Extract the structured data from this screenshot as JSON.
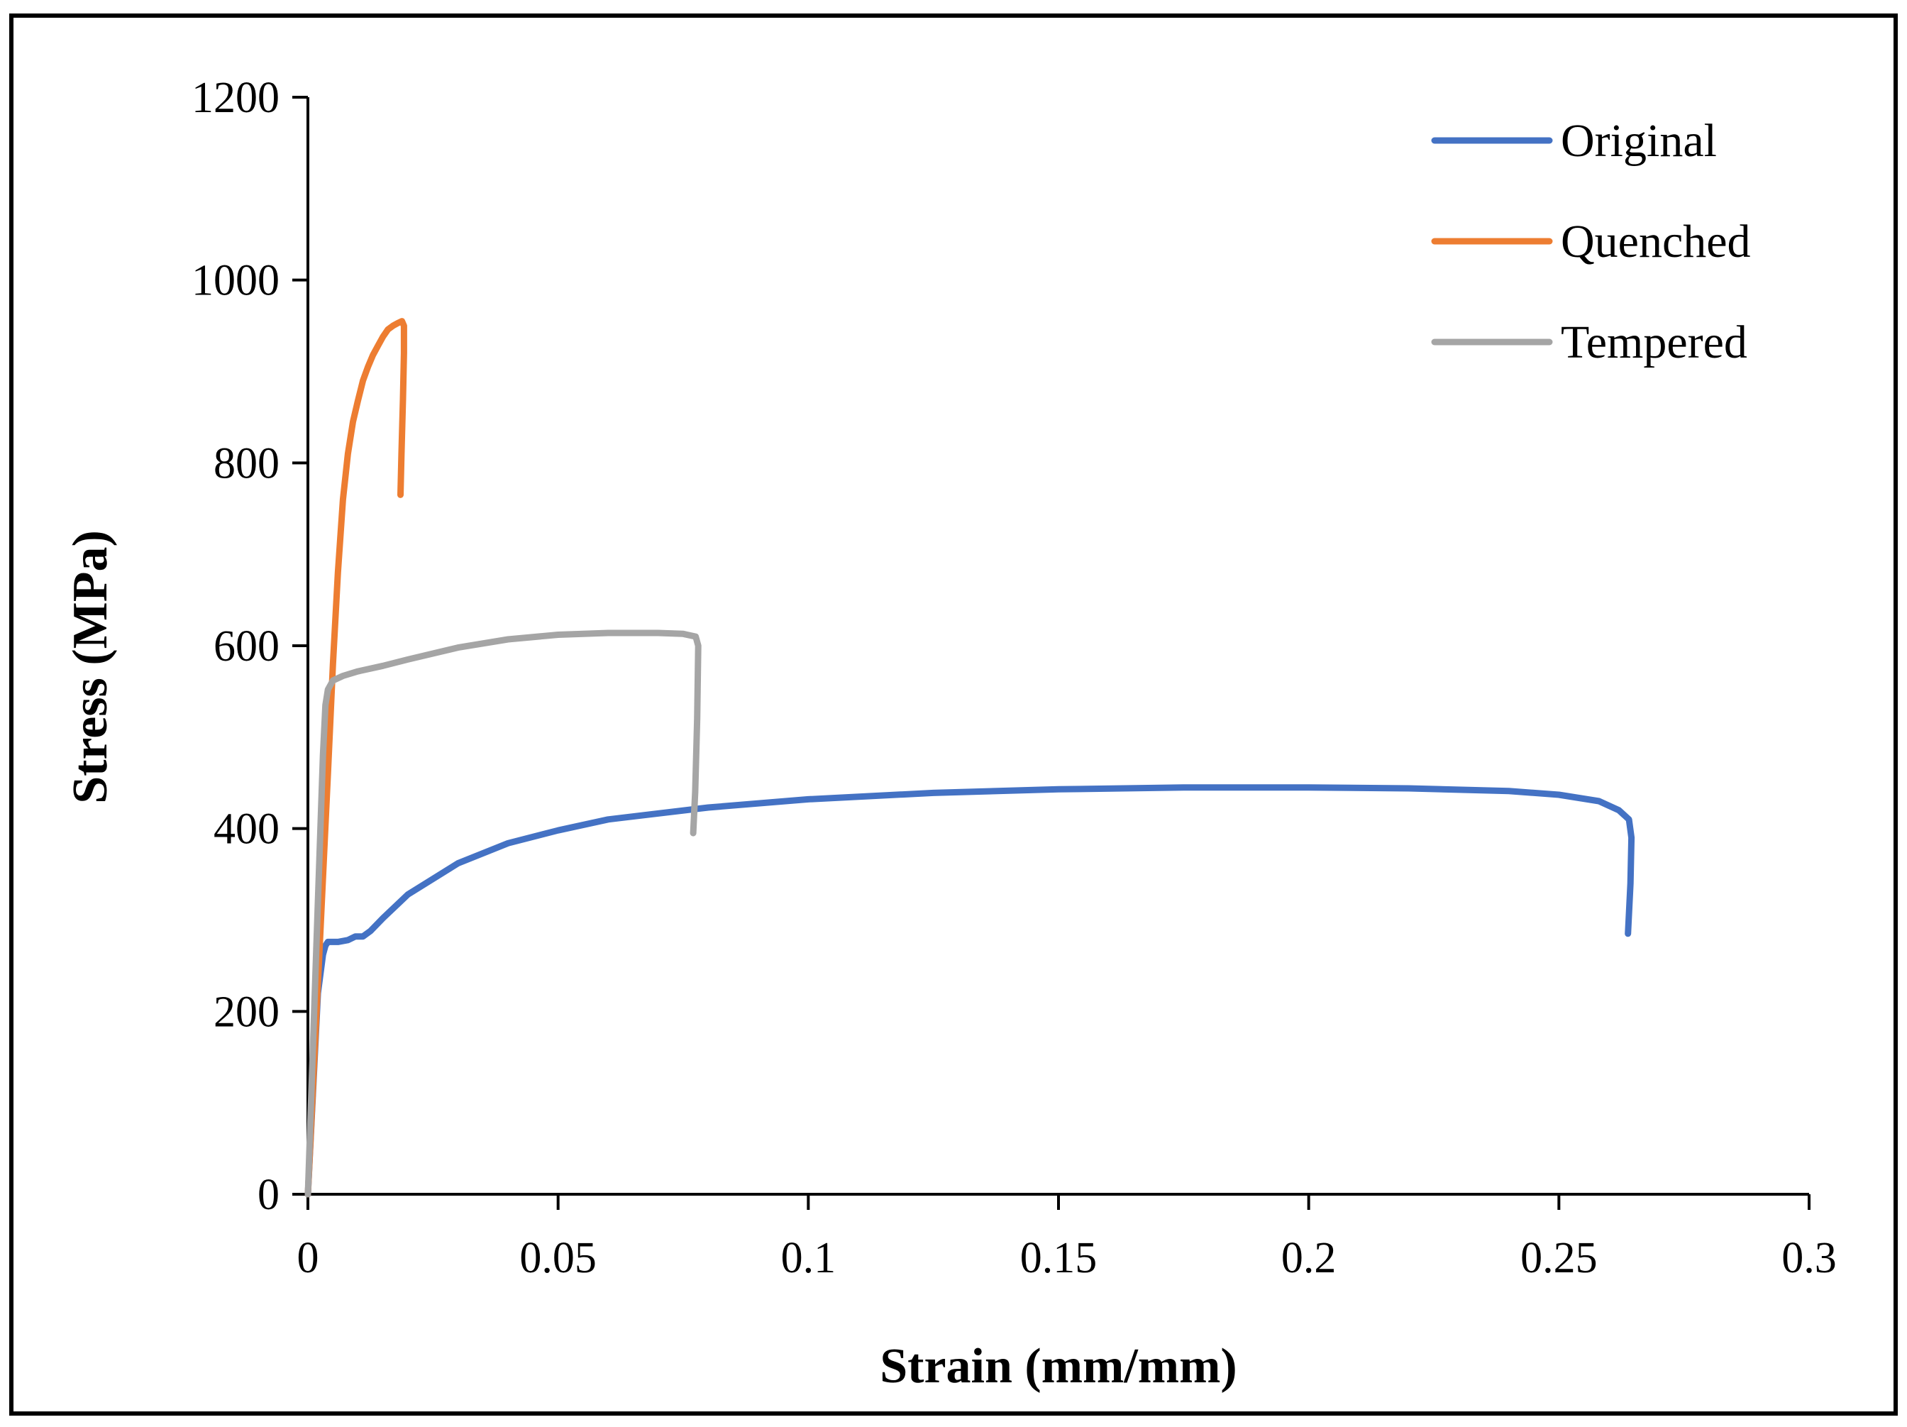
{
  "chart_data": {
    "type": "line",
    "title": "",
    "xlabel": "Strain (mm/mm)",
    "ylabel": "Stress (MPa)",
    "xlim": [
      0,
      0.3
    ],
    "ylim": [
      0,
      1200
    ],
    "x_ticks": [
      0,
      0.05,
      0.1,
      0.15,
      0.2,
      0.25,
      0.3
    ],
    "x_tick_labels": [
      "0",
      "0.05",
      "0.1",
      "0.15",
      "0.2",
      "0.25",
      "0.3"
    ],
    "y_ticks": [
      0,
      200,
      400,
      600,
      800,
      1000,
      1200
    ],
    "y_tick_labels": [
      "0",
      "200",
      "400",
      "600",
      "800",
      "1000",
      "1200"
    ],
    "grid": false,
    "legend_position": "top-right",
    "series": [
      {
        "name": "Original",
        "color": "#4472C4",
        "x": [
          0,
          0.002,
          0.003,
          0.0035,
          0.004,
          0.006,
          0.008,
          0.0095,
          0.011,
          0.0125,
          0.015,
          0.02,
          0.03,
          0.04,
          0.05,
          0.06,
          0.08,
          0.1,
          0.125,
          0.15,
          0.175,
          0.2,
          0.22,
          0.24,
          0.25,
          0.258,
          0.262,
          0.264,
          0.2645,
          0.2643,
          0.2638
        ],
        "y": [
          0,
          220,
          262,
          272,
          276,
          276,
          278,
          282,
          282,
          288,
          302,
          328,
          362,
          384,
          398,
          410,
          423,
          432,
          439,
          443,
          445,
          445,
          444,
          441,
          437,
          430,
          420,
          410,
          390,
          340,
          285
        ]
      },
      {
        "name": "Quenched",
        "color": "#ED7D31",
        "x": [
          0,
          0.002,
          0.004,
          0.005,
          0.006,
          0.007,
          0.008,
          0.009,
          0.01,
          0.011,
          0.012,
          0.013,
          0.014,
          0.015,
          0.016,
          0.017,
          0.018,
          0.0188,
          0.0192,
          0.0192,
          0.019,
          0.0187,
          0.0185
        ],
        "y": [
          0,
          230,
          460,
          580,
          680,
          760,
          810,
          845,
          868,
          890,
          905,
          918,
          928,
          938,
          946,
          950,
          953,
          955,
          950,
          920,
          870,
          810,
          765
        ]
      },
      {
        "name": "Tempered",
        "color": "#A5A5A5",
        "x": [
          0,
          0.002,
          0.003,
          0.0035,
          0.004,
          0.005,
          0.007,
          0.01,
          0.015,
          0.02,
          0.03,
          0.04,
          0.05,
          0.06,
          0.065,
          0.07,
          0.075,
          0.0775,
          0.078,
          0.0778,
          0.0774,
          0.077
        ],
        "y": [
          0,
          320,
          480,
          535,
          552,
          562,
          567,
          572,
          578,
          585,
          598,
          607,
          612,
          614,
          614,
          614,
          613,
          610,
          600,
          520,
          440,
          395
        ]
      }
    ]
  }
}
